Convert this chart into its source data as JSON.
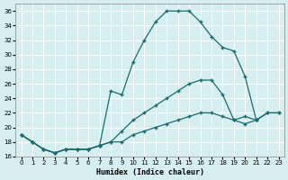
{
  "xlabel": "Humidex (Indice chaleur)",
  "background_color": "#d6eef0",
  "grid_color": "#c8dfe1",
  "line_color": "#1a6b6b",
  "xlim": [
    -0.5,
    23.5
  ],
  "ylim": [
    16,
    37
  ],
  "xticks": [
    0,
    1,
    2,
    3,
    4,
    5,
    6,
    7,
    8,
    9,
    10,
    11,
    12,
    13,
    14,
    15,
    16,
    17,
    18,
    19,
    20,
    21,
    22,
    23
  ],
  "yticks": [
    16,
    18,
    20,
    22,
    24,
    26,
    28,
    30,
    32,
    34,
    36
  ],
  "line_top_x": [
    0,
    1,
    2,
    3,
    4,
    5,
    6,
    7,
    8,
    9,
    10,
    11,
    12,
    13,
    14,
    15,
    16,
    17,
    18,
    19,
    20,
    21
  ],
  "line_top_y": [
    19,
    18,
    17,
    16.5,
    17,
    17,
    17,
    17.5,
    25,
    24.5,
    29,
    32,
    34.5,
    36,
    36,
    36,
    34.5,
    32.5,
    31,
    30.5,
    27,
    21
  ],
  "line_mid_x": [
    0,
    1,
    2,
    3,
    4,
    5,
    6,
    7,
    8,
    9,
    10,
    11,
    12,
    13,
    14,
    15,
    16,
    17,
    18,
    19,
    20,
    21,
    22,
    23
  ],
  "line_mid_y": [
    19,
    18,
    17,
    16.5,
    17,
    17,
    17,
    17.5,
    18,
    19.5,
    21,
    22,
    23,
    24,
    25,
    26,
    26.5,
    26.5,
    24.5,
    21,
    20.5,
    21,
    22,
    22
  ],
  "line_bot_x": [
    0,
    1,
    2,
    3,
    4,
    5,
    6,
    7,
    8,
    9,
    10,
    11,
    12,
    13,
    14,
    15,
    16,
    17,
    18,
    19,
    20,
    21,
    22,
    23
  ],
  "line_bot_y": [
    19,
    18,
    17,
    16.5,
    17,
    17,
    17,
    17.5,
    18,
    18,
    19,
    19.5,
    20,
    20.5,
    21,
    21.5,
    22,
    22,
    21.5,
    21,
    21.5,
    21,
    22,
    22
  ]
}
